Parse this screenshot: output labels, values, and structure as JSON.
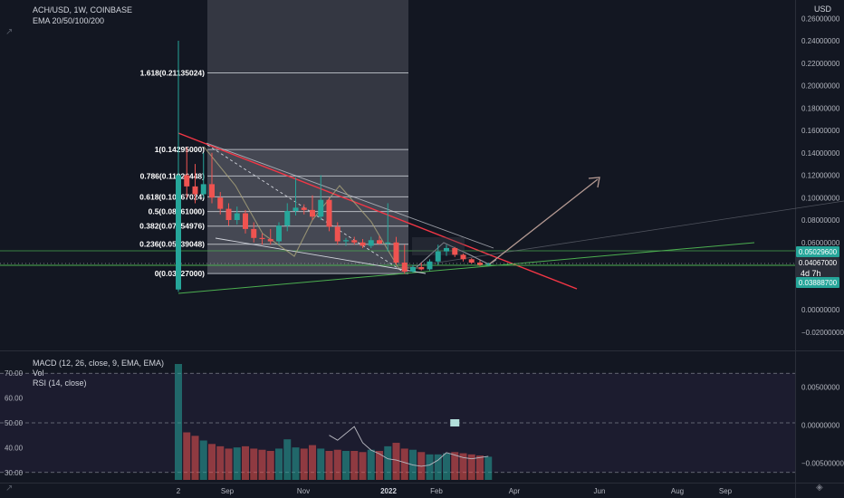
{
  "header": {
    "symbol_line": "ACH/USD, 1W, COINBASE",
    "ema_line": "EMA 20/50/100/200"
  },
  "currency_label": "USD",
  "indicators": {
    "macd": "MACD (12, 26, close, 9, EMA, EMA)",
    "vol": "Vol",
    "rsi": "RSI (14, close)"
  },
  "countdown": "4d 7h",
  "colors": {
    "background": "#131722",
    "up": "#26a69a",
    "down": "#ef5350",
    "resistance_line": "#f23645",
    "support_line": "#4caf50",
    "fib_line": "#d1d4dc",
    "projection_arrow": "#b59a93"
  },
  "chart_data": {
    "type": "candlestick",
    "price_axis": {
      "ticks": [
        0.26,
        0.24,
        0.22,
        0.2,
        0.18,
        0.16,
        0.14,
        0.12,
        0.1,
        0.08,
        0.06,
        0.0,
        -0.02
      ],
      "tick_labels": [
        "0.26000000",
        "0.24000000",
        "0.22000000",
        "0.20000000",
        "0.18000000",
        "0.16000000",
        "0.14000000",
        "0.12000000",
        "0.10000000",
        "0.08000000",
        "0.06000000",
        "0.00000000",
        "−0.02000000"
      ],
      "range": [
        -0.025,
        0.275
      ]
    },
    "time_axis": {
      "labels": [
        "2",
        "Sep",
        "Nov",
        "2022",
        "Feb",
        "Apr",
        "Jun",
        "Aug",
        "Sep"
      ],
      "bold": [
        "2022"
      ]
    },
    "price_badges": [
      {
        "value": "0.05029600",
        "color": "#26a69a"
      },
      {
        "value": "0.04067000",
        "color": "#2a2e39"
      },
      {
        "value": "0.03888700",
        "color": "#26a69a"
      }
    ],
    "fib_levels": [
      {
        "label": "1.618(0.21135024)",
        "value": 0.21135024
      },
      {
        "label": "1(0.14295000)",
        "value": 0.14295
      },
      {
        "label": "0.786(0.11926448)",
        "value": 0.11926448
      },
      {
        "label": "0.618(0.10067024)",
        "value": 0.10067024
      },
      {
        "label": "0.5(0.08761000)",
        "value": 0.08761
      },
      {
        "label": "0.382(0.07454976)",
        "value": 0.07454976
      },
      {
        "label": "0.236(0.05839048)",
        "value": 0.05839048
      },
      {
        "label": "0(0.03227000)",
        "value": 0.03227
      }
    ],
    "candles": [
      {
        "o": 0.018,
        "h": 0.24,
        "l": 0.016,
        "c": 0.12
      },
      {
        "o": 0.12,
        "h": 0.145,
        "l": 0.1,
        "c": 0.11
      },
      {
        "o": 0.11,
        "h": 0.13,
        "l": 0.095,
        "c": 0.103
      },
      {
        "o": 0.103,
        "h": 0.14,
        "l": 0.1,
        "c": 0.112
      },
      {
        "o": 0.112,
        "h": 0.14,
        "l": 0.095,
        "c": 0.1
      },
      {
        "o": 0.1,
        "h": 0.105,
        "l": 0.085,
        "c": 0.09
      },
      {
        "o": 0.09,
        "h": 0.095,
        "l": 0.075,
        "c": 0.08
      },
      {
        "o": 0.08,
        "h": 0.092,
        "l": 0.076,
        "c": 0.086
      },
      {
        "o": 0.086,
        "h": 0.089,
        "l": 0.068,
        "c": 0.072
      },
      {
        "o": 0.072,
        "h": 0.078,
        "l": 0.06,
        "c": 0.064
      },
      {
        "o": 0.064,
        "h": 0.068,
        "l": 0.058,
        "c": 0.063
      },
      {
        "o": 0.063,
        "h": 0.072,
        "l": 0.058,
        "c": 0.061
      },
      {
        "o": 0.061,
        "h": 0.078,
        "l": 0.058,
        "c": 0.075
      },
      {
        "o": 0.075,
        "h": 0.095,
        "l": 0.07,
        "c": 0.088
      },
      {
        "o": 0.088,
        "h": 0.118,
        "l": 0.084,
        "c": 0.091
      },
      {
        "o": 0.091,
        "h": 0.094,
        "l": 0.085,
        "c": 0.089
      },
      {
        "o": 0.089,
        "h": 0.102,
        "l": 0.08,
        "c": 0.083
      },
      {
        "o": 0.083,
        "h": 0.12,
        "l": 0.08,
        "c": 0.098
      },
      {
        "o": 0.098,
        "h": 0.1,
        "l": 0.07,
        "c": 0.074
      },
      {
        "o": 0.074,
        "h": 0.078,
        "l": 0.058,
        "c": 0.061
      },
      {
        "o": 0.061,
        "h": 0.064,
        "l": 0.057,
        "c": 0.062
      },
      {
        "o": 0.062,
        "h": 0.065,
        "l": 0.058,
        "c": 0.06
      },
      {
        "o": 0.06,
        "h": 0.063,
        "l": 0.055,
        "c": 0.057
      },
      {
        "o": 0.057,
        "h": 0.065,
        "l": 0.055,
        "c": 0.062
      },
      {
        "o": 0.062,
        "h": 0.066,
        "l": 0.058,
        "c": 0.059
      },
      {
        "o": 0.059,
        "h": 0.095,
        "l": 0.052,
        "c": 0.06
      },
      {
        "o": 0.06,
        "h": 0.065,
        "l": 0.04,
        "c": 0.042
      },
      {
        "o": 0.042,
        "h": 0.058,
        "l": 0.032,
        "c": 0.034
      },
      {
        "o": 0.034,
        "h": 0.04,
        "l": 0.033,
        "c": 0.038
      },
      {
        "o": 0.038,
        "h": 0.042,
        "l": 0.035,
        "c": 0.036
      },
      {
        "o": 0.036,
        "h": 0.045,
        "l": 0.035,
        "c": 0.043
      },
      {
        "o": 0.043,
        "h": 0.058,
        "l": 0.04,
        "c": 0.052
      },
      {
        "o": 0.052,
        "h": 0.058,
        "l": 0.048,
        "c": 0.055
      },
      {
        "o": 0.055,
        "h": 0.056,
        "l": 0.047,
        "c": 0.049
      },
      {
        "o": 0.049,
        "h": 0.05,
        "l": 0.043,
        "c": 0.045
      },
      {
        "o": 0.045,
        "h": 0.046,
        "l": 0.041,
        "c": 0.042
      },
      {
        "o": 0.042,
        "h": 0.044,
        "l": 0.039,
        "c": 0.04
      },
      {
        "o": 0.04,
        "h": 0.042,
        "l": 0.039,
        "c": 0.0407
      }
    ],
    "rsi": {
      "axis_labels": [
        "70.00",
        "60.00",
        "50.00",
        "40.00",
        "30.00"
      ],
      "bands": [
        70,
        50,
        30
      ],
      "range": [
        27,
        73
      ],
      "values": [
        {
          "i": 18,
          "v": 45
        },
        {
          "i": 19,
          "v": 43
        },
        {
          "i": 21,
          "v": 48.5
        },
        {
          "i": 22,
          "v": 42
        },
        {
          "i": 23,
          "v": 39
        },
        {
          "i": 24,
          "v": 37.5
        },
        {
          "i": 25,
          "v": 35.5
        },
        {
          "i": 26,
          "v": 35
        },
        {
          "i": 27,
          "v": 34
        },
        {
          "i": 28,
          "v": 33
        },
        {
          "i": 29,
          "v": 32.5
        },
        {
          "i": 30,
          "v": 33
        },
        {
          "i": 31,
          "v": 35
        },
        {
          "i": 32,
          "v": 38
        },
        {
          "i": 33,
          "v": 37
        },
        {
          "i": 34,
          "v": 36
        },
        {
          "i": 35,
          "v": 35.5
        },
        {
          "i": 36,
          "v": 36
        },
        {
          "i": 37,
          "v": 36.5
        }
      ]
    },
    "volume": [
      100,
      41,
      38,
      34,
      31,
      29,
      27,
      28,
      29,
      27,
      26,
      25,
      27,
      35,
      28,
      27,
      30,
      27,
      25,
      26,
      25,
      25,
      24,
      26,
      25,
      29,
      32,
      27,
      26,
      24,
      22,
      22,
      23,
      24,
      23,
      22,
      21,
      20
    ],
    "macd_axis": {
      "tick_labels": [
        "0.00500000",
        "0.00000000",
        "−0.00500000"
      ],
      "ticks": [
        0.005,
        0.0,
        -0.005
      ],
      "range": [
        -0.0072,
        0.0078
      ]
    },
    "macd_marker": {
      "i": 33,
      "value": 0.0003
    }
  }
}
